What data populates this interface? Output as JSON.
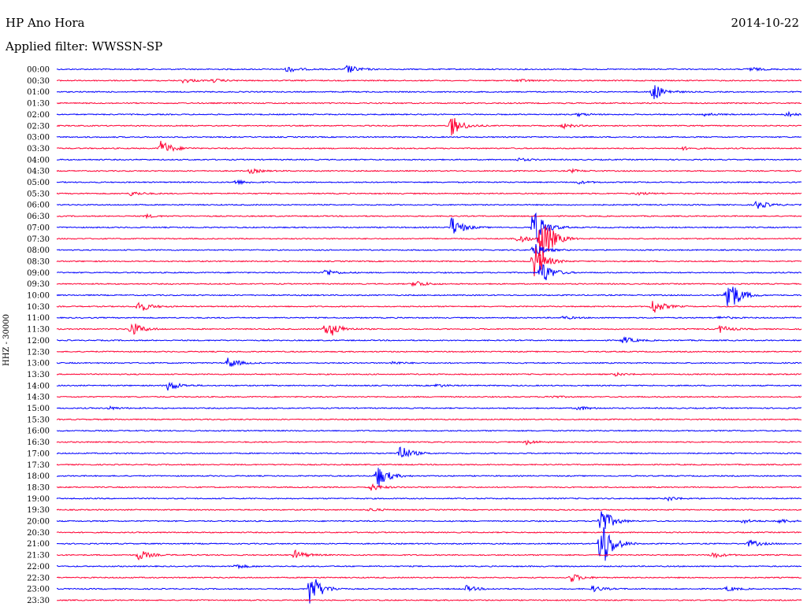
{
  "header": {
    "station": "HP Ano Hora",
    "filter": "Applied filter: WWSSN-SP",
    "date": "2014-10-22"
  },
  "chart_data": {
    "type": "line",
    "ylabel": "HHZ - 30000",
    "colors": {
      "even": "#0000ff",
      "odd": "#ff0033"
    },
    "rows": [
      {
        "label": "00:00",
        "events": [
          [
            0.31,
            4
          ],
          [
            0.39,
            6
          ],
          [
            0.93,
            3
          ]
        ]
      },
      {
        "label": "00:30",
        "events": [
          [
            0.17,
            3
          ],
          [
            0.21,
            2
          ],
          [
            0.62,
            2
          ]
        ]
      },
      {
        "label": "01:00",
        "events": [
          [
            0.8,
            12
          ]
        ]
      },
      {
        "label": "01:30",
        "events": []
      },
      {
        "label": "02:00",
        "events": [
          [
            0.7,
            2
          ],
          [
            0.87,
            2
          ],
          [
            0.98,
            3
          ]
        ]
      },
      {
        "label": "02:30",
        "events": [
          [
            0.53,
            14
          ],
          [
            0.68,
            3
          ]
        ]
      },
      {
        "label": "03:00",
        "events": []
      },
      {
        "label": "03:30",
        "events": [
          [
            0.14,
            11
          ],
          [
            0.84,
            2
          ]
        ]
      },
      {
        "label": "04:00",
        "events": [
          [
            0.62,
            2
          ]
        ]
      },
      {
        "label": "04:30",
        "events": [
          [
            0.26,
            3
          ],
          [
            0.69,
            2
          ]
        ]
      },
      {
        "label": "05:00",
        "events": [
          [
            0.24,
            3
          ],
          [
            0.7,
            2
          ]
        ]
      },
      {
        "label": "05:30",
        "events": [
          [
            0.1,
            3
          ],
          [
            0.78,
            2
          ]
        ]
      },
      {
        "label": "06:00",
        "events": [
          [
            0.94,
            6
          ]
        ]
      },
      {
        "label": "06:30",
        "events": [
          [
            0.12,
            2
          ]
        ]
      },
      {
        "label": "07:00",
        "events": [
          [
            0.53,
            14
          ],
          [
            0.64,
            28
          ]
        ]
      },
      {
        "label": "07:30",
        "events": [
          [
            0.62,
            6
          ],
          [
            0.65,
            40
          ]
        ]
      },
      {
        "label": "08:00",
        "events": [
          [
            0.64,
            10
          ]
        ]
      },
      {
        "label": "08:30",
        "events": [
          [
            0.64,
            25
          ]
        ]
      },
      {
        "label": "09:00",
        "events": [
          [
            0.36,
            5
          ],
          [
            0.65,
            18
          ]
        ]
      },
      {
        "label": "09:30",
        "events": [
          [
            0.48,
            5
          ]
        ]
      },
      {
        "label": "10:00",
        "events": [
          [
            0.9,
            30
          ]
        ]
      },
      {
        "label": "10:30",
        "events": [
          [
            0.11,
            8
          ],
          [
            0.8,
            10
          ]
        ]
      },
      {
        "label": "11:00",
        "events": [
          [
            0.68,
            2
          ],
          [
            0.89,
            2
          ]
        ]
      },
      {
        "label": "11:30",
        "events": [
          [
            0.1,
            10
          ],
          [
            0.36,
            7
          ],
          [
            0.37,
            5
          ],
          [
            0.89,
            5
          ]
        ]
      },
      {
        "label": "12:00",
        "events": [
          [
            0.76,
            5
          ]
        ]
      },
      {
        "label": "12:30",
        "events": []
      },
      {
        "label": "13:00",
        "events": [
          [
            0.23,
            7
          ],
          [
            0.45,
            2
          ]
        ]
      },
      {
        "label": "13:30",
        "events": [
          [
            0.75,
            2
          ]
        ]
      },
      {
        "label": "14:00",
        "events": [
          [
            0.15,
            7
          ],
          [
            0.51,
            2
          ]
        ]
      },
      {
        "label": "14:30",
        "events": [
          [
            0.66,
            2
          ]
        ]
      },
      {
        "label": "15:00",
        "events": [
          [
            0.07,
            2
          ],
          [
            0.7,
            3
          ]
        ]
      },
      {
        "label": "15:30",
        "events": []
      },
      {
        "label": "16:00",
        "events": []
      },
      {
        "label": "16:30",
        "events": [
          [
            0.63,
            3
          ]
        ]
      },
      {
        "label": "17:00",
        "events": [
          [
            0.46,
            12
          ]
        ]
      },
      {
        "label": "17:30",
        "events": []
      },
      {
        "label": "18:00",
        "events": [
          [
            0.43,
            16
          ]
        ]
      },
      {
        "label": "18:30",
        "events": [
          [
            0.42,
            5
          ]
        ]
      },
      {
        "label": "19:00",
        "events": [
          [
            0.82,
            3
          ]
        ]
      },
      {
        "label": "19:30",
        "events": [
          [
            0.42,
            2
          ]
        ]
      },
      {
        "label": "20:00",
        "events": [
          [
            0.73,
            20
          ],
          [
            0.92,
            3
          ],
          [
            0.97,
            3
          ]
        ]
      },
      {
        "label": "20:30",
        "events": []
      },
      {
        "label": "21:00",
        "events": [
          [
            0.73,
            40
          ],
          [
            0.93,
            5
          ]
        ]
      },
      {
        "label": "21:30",
        "events": [
          [
            0.11,
            7
          ],
          [
            0.32,
            6
          ],
          [
            0.88,
            4
          ]
        ]
      },
      {
        "label": "22:00",
        "events": [
          [
            0.24,
            3
          ]
        ]
      },
      {
        "label": "22:30",
        "events": [
          [
            0.69,
            6
          ]
        ]
      },
      {
        "label": "23:00",
        "events": [
          [
            0.34,
            24
          ],
          [
            0.55,
            4
          ],
          [
            0.72,
            4
          ],
          [
            0.9,
            3
          ]
        ]
      },
      {
        "label": "23:30",
        "events": []
      }
    ]
  }
}
